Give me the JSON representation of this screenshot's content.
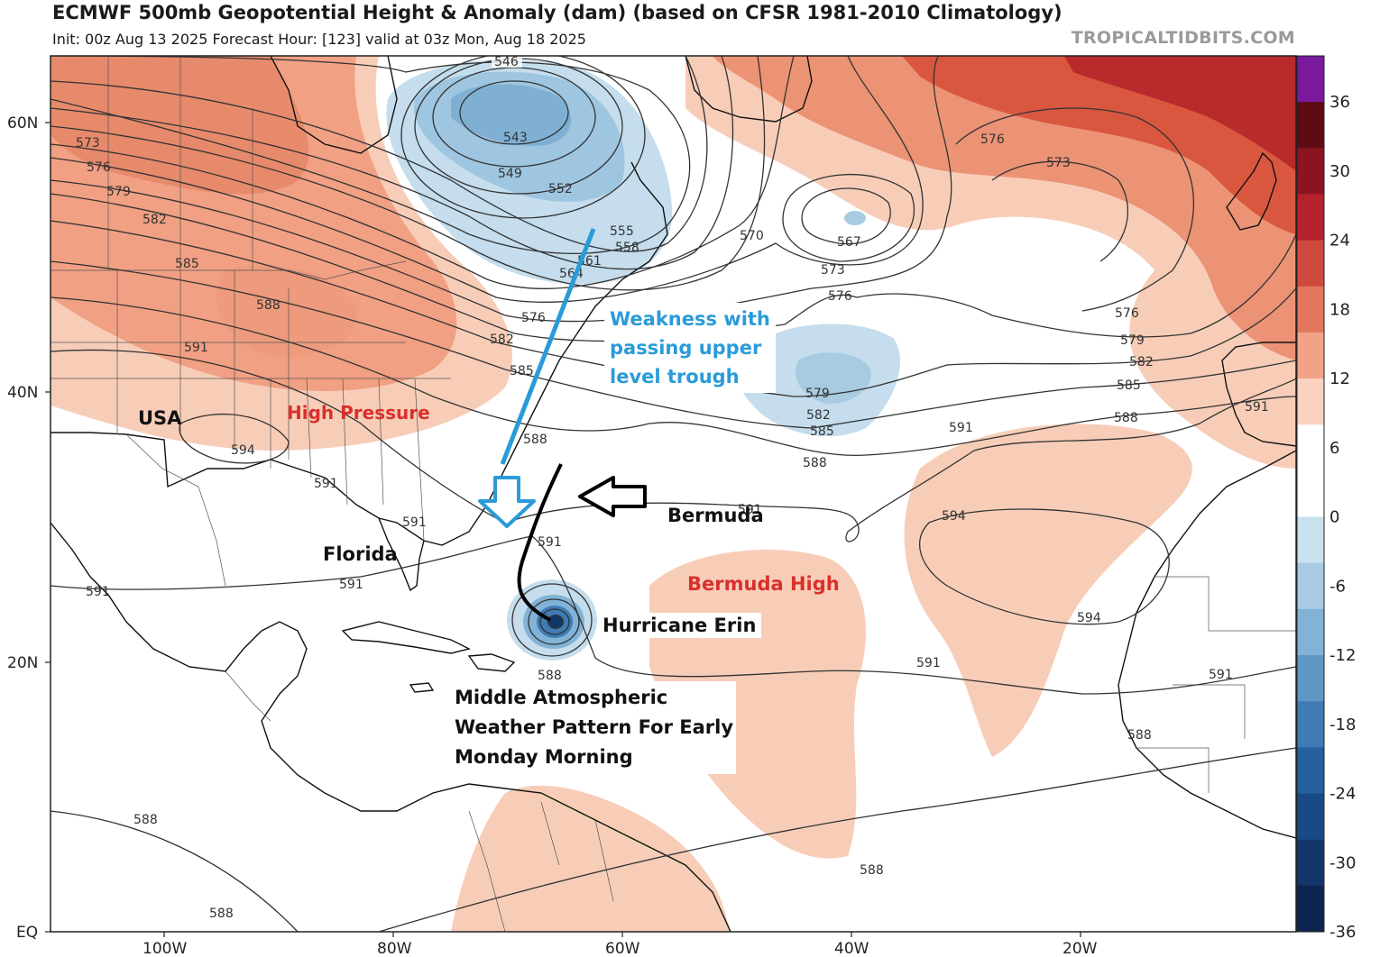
{
  "header": {
    "title": "ECMWF 500mb Geopotential Height & Anomaly (dam) (based on CFSR 1981-2010 Climatology)",
    "subtitle": "Init: 00z Aug 13 2025   Forecast Hour: [123]   valid at 03z Mon, Aug 18 2025",
    "brand": "TROPICALTIDBITS.COM"
  },
  "map": {
    "lat_labels": [
      "60N",
      "40N",
      "20N",
      "EQ"
    ],
    "lon_labels": [
      "100W",
      "80W",
      "60W",
      "40W",
      "20W"
    ]
  },
  "colorbar": {
    "tick_labels": [
      "36",
      "30",
      "24",
      "18",
      "12",
      "6",
      "0",
      "-6",
      "-12",
      "-18",
      "-24",
      "-30",
      "-36"
    ],
    "colors": [
      "#7a1a9e",
      "#5e0b14",
      "#8c1420",
      "#b4232b",
      "#cf4a3e",
      "#e2775e",
      "#f2a387",
      "#fad2c0",
      "#ffffff",
      "#ffffff",
      "#c9e0ee",
      "#a6cbe3",
      "#82b2d6",
      "#5f97c6",
      "#3f7bb4",
      "#25609f",
      "#194a85",
      "#12366a",
      "#0c244f"
    ]
  },
  "contour_labels": [
    {
      "text": "546"
    },
    {
      "text": "543"
    },
    {
      "text": "549"
    },
    {
      "text": "552"
    },
    {
      "text": "555"
    },
    {
      "text": "558"
    },
    {
      "text": "561"
    },
    {
      "text": "564"
    },
    {
      "text": "567"
    },
    {
      "text": "570"
    },
    {
      "text": "573"
    },
    {
      "text": "576"
    },
    {
      "text": "579"
    },
    {
      "text": "582"
    },
    {
      "text": "585"
    },
    {
      "text": "588"
    },
    {
      "text": "591"
    },
    {
      "text": "594"
    }
  ],
  "annotations": {
    "usa": "USA",
    "high_pressure": "High Pressure",
    "florida": "Florida",
    "bermuda": "Bermuda",
    "bermuda_high": "Bermuda  High",
    "hurricane": "Hurricane Erin",
    "weakness_lines": [
      "Weakness with",
      "passing upper",
      "level trough"
    ],
    "pattern_lines": [
      "Middle Atmospheric",
      "Weather Pattern For Early",
      "Monday Morning"
    ]
  }
}
